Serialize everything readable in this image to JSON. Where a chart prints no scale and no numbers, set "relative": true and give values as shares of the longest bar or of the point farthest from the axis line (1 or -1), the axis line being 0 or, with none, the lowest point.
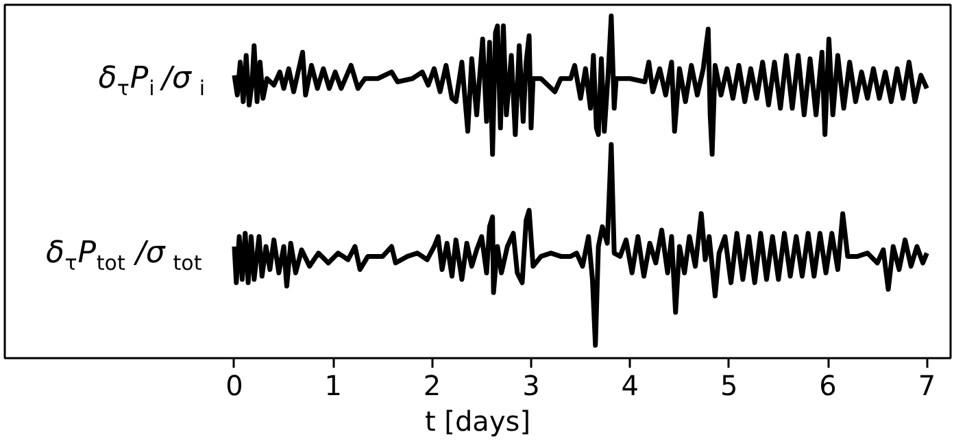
{
  "chart_data": {
    "type": "line",
    "relative": true,
    "xlabel": "t [days]",
    "xlim": [
      -2.32,
      7.24
    ],
    "xticks": [
      0,
      1,
      2,
      3,
      4,
      5,
      6,
      7
    ],
    "grid": false,
    "line_style": "solid",
    "series": [
      {
        "name": "δ$_{τ}$P$_{i}$/σ$_{i}$",
        "color": "#000000",
        "x": [
          0.0,
          0.03,
          0.06,
          0.09,
          0.12,
          0.15,
          0.18,
          0.2,
          0.23,
          0.26,
          0.29,
          0.33,
          0.4,
          0.46,
          0.5,
          0.55,
          0.6,
          0.69,
          0.72,
          0.78,
          0.84,
          0.9,
          0.96,
          1.02,
          1.08,
          1.18,
          1.25,
          1.32,
          1.45,
          1.59,
          1.65,
          1.8,
          1.9,
          1.96,
          2.02,
          2.08,
          2.14,
          2.2,
          2.24,
          2.3,
          2.36,
          2.4,
          2.45,
          2.51,
          2.55,
          2.58,
          2.61,
          2.64,
          2.66,
          2.69,
          2.72,
          2.75,
          2.8,
          2.84,
          2.88,
          2.92,
          2.95,
          2.98,
          3.0,
          3.02,
          3.1,
          3.24,
          3.3,
          3.4,
          3.44,
          3.5,
          3.55,
          3.6,
          3.63,
          3.66,
          3.68,
          3.71,
          3.74,
          3.78,
          3.81,
          3.84,
          3.86,
          4.0,
          4.15,
          4.19,
          4.23,
          4.3,
          4.36,
          4.42,
          4.45,
          4.5,
          4.56,
          4.62,
          4.68,
          4.74,
          4.79,
          4.81,
          4.83,
          4.86,
          4.92,
          4.98,
          5.04,
          5.1,
          5.16,
          5.22,
          5.28,
          5.34,
          5.4,
          5.46,
          5.52,
          5.58,
          5.64,
          5.7,
          5.76,
          5.82,
          5.88,
          5.94,
          5.97,
          6.01,
          6.05,
          6.1,
          6.16,
          6.22,
          6.28,
          6.34,
          6.4,
          6.46,
          6.52,
          6.58,
          6.64,
          6.7,
          6.76,
          6.82,
          6.88,
          6.94,
          7.0
        ],
        "values": [
          0.82,
          0.76,
          0.86,
          0.74,
          0.88,
          0.73,
          0.8,
          0.91,
          0.74,
          0.86,
          0.75,
          0.81,
          0.79,
          0.83,
          0.78,
          0.84,
          0.77,
          0.89,
          0.76,
          0.85,
          0.78,
          0.84,
          0.78,
          0.83,
          0.78,
          0.85,
          0.78,
          0.81,
          0.81,
          0.83,
          0.8,
          0.81,
          0.83,
          0.79,
          0.84,
          0.77,
          0.85,
          0.75,
          0.74,
          0.86,
          0.65,
          0.87,
          0.7,
          0.93,
          0.68,
          0.92,
          0.58,
          0.95,
          0.97,
          0.66,
          0.97,
          0.7,
          0.88,
          0.64,
          0.91,
          0.68,
          0.86,
          0.94,
          0.66,
          0.81,
          0.81,
          0.77,
          0.81,
          0.81,
          0.85,
          0.75,
          0.84,
          0.72,
          0.88,
          0.66,
          0.64,
          0.87,
          0.65,
          0.83,
          1.0,
          0.72,
          0.81,
          0.81,
          0.8,
          0.86,
          0.77,
          0.84,
          0.76,
          0.86,
          0.65,
          0.84,
          0.74,
          0.85,
          0.76,
          0.84,
          0.96,
          0.7,
          0.58,
          0.85,
          0.76,
          0.84,
          0.75,
          0.85,
          0.74,
          0.84,
          0.75,
          0.86,
          0.73,
          0.86,
          0.72,
          0.88,
          0.72,
          0.88,
          0.7,
          0.87,
          0.7,
          0.89,
          0.64,
          0.93,
          0.7,
          0.88,
          0.72,
          0.86,
          0.74,
          0.83,
          0.75,
          0.84,
          0.75,
          0.83,
          0.74,
          0.84,
          0.75,
          0.86,
          0.74,
          0.82,
          0.78
        ]
      },
      {
        "name": "δ$_{τ}$P$_{tot}$/σ$_{tot}$",
        "color": "#000000",
        "x": [
          0.0,
          0.02,
          0.05,
          0.08,
          0.11,
          0.14,
          0.17,
          0.2,
          0.25,
          0.28,
          0.32,
          0.36,
          0.4,
          0.45,
          0.5,
          0.53,
          0.57,
          0.62,
          0.68,
          0.76,
          0.85,
          0.95,
          1.05,
          1.15,
          1.22,
          1.27,
          1.35,
          1.5,
          1.59,
          1.63,
          1.75,
          1.85,
          1.95,
          2.02,
          2.06,
          2.1,
          2.15,
          2.2,
          2.24,
          2.3,
          2.35,
          2.4,
          2.45,
          2.5,
          2.55,
          2.58,
          2.61,
          2.62,
          2.66,
          2.7,
          2.76,
          2.82,
          2.86,
          2.91,
          2.95,
          2.98,
          3.02,
          3.1,
          3.2,
          3.3,
          3.4,
          3.46,
          3.52,
          3.58,
          3.62,
          3.65,
          3.68,
          3.72,
          3.77,
          3.81,
          3.84,
          3.9,
          3.96,
          4.02,
          4.08,
          4.14,
          4.2,
          4.26,
          4.32,
          4.38,
          4.42,
          4.46,
          4.5,
          4.55,
          4.6,
          4.66,
          4.72,
          4.76,
          4.8,
          4.86,
          4.9,
          4.96,
          5.02,
          5.08,
          5.14,
          5.2,
          5.26,
          5.32,
          5.38,
          5.44,
          5.5,
          5.56,
          5.62,
          5.68,
          5.74,
          5.8,
          5.86,
          5.92,
          5.98,
          6.04,
          6.1,
          6.15,
          6.2,
          6.3,
          6.4,
          6.5,
          6.56,
          6.61,
          6.66,
          6.72,
          6.78,
          6.84,
          6.9,
          6.96,
          7.0
        ],
        "values": [
          0.3,
          0.19,
          0.33,
          0.2,
          0.34,
          0.19,
          0.33,
          0.2,
          0.33,
          0.21,
          0.3,
          0.23,
          0.32,
          0.22,
          0.3,
          0.18,
          0.31,
          0.22,
          0.29,
          0.24,
          0.28,
          0.25,
          0.28,
          0.26,
          0.3,
          0.23,
          0.27,
          0.27,
          0.3,
          0.25,
          0.27,
          0.28,
          0.26,
          0.3,
          0.33,
          0.23,
          0.31,
          0.21,
          0.32,
          0.2,
          0.31,
          0.24,
          0.29,
          0.33,
          0.22,
          0.36,
          0.39,
          0.16,
          0.3,
          0.22,
          0.3,
          0.34,
          0.22,
          0.19,
          0.38,
          0.41,
          0.24,
          0.27,
          0.28,
          0.27,
          0.27,
          0.28,
          0.24,
          0.33,
          0.2,
          0.0,
          0.3,
          0.36,
          0.31,
          0.61,
          0.28,
          0.27,
          0.32,
          0.22,
          0.33,
          0.21,
          0.31,
          0.25,
          0.35,
          0.22,
          0.33,
          0.1,
          0.3,
          0.22,
          0.33,
          0.24,
          0.4,
          0.26,
          0.33,
          0.15,
          0.28,
          0.33,
          0.19,
          0.34,
          0.2,
          0.33,
          0.19,
          0.34,
          0.2,
          0.33,
          0.2,
          0.34,
          0.21,
          0.33,
          0.21,
          0.34,
          0.21,
          0.34,
          0.22,
          0.34,
          0.23,
          0.4,
          0.27,
          0.27,
          0.28,
          0.25,
          0.29,
          0.17,
          0.3,
          0.23,
          0.32,
          0.24,
          0.3,
          0.25,
          0.28
        ]
      }
    ]
  }
}
